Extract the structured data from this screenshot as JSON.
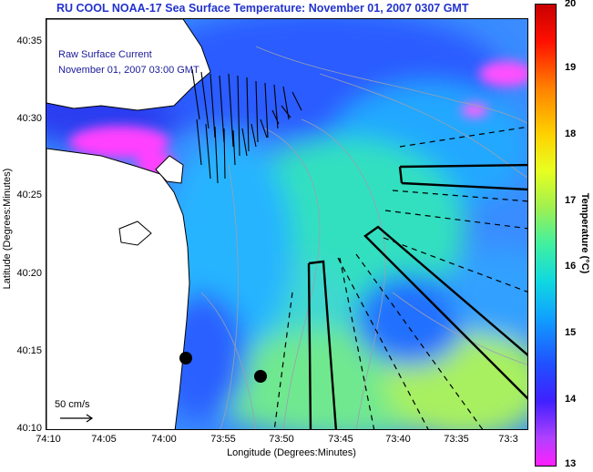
{
  "title": "RU COOL  NOAA-17  Sea Surface Temperature:  November 01, 2007 0307 GMT",
  "legend": {
    "current_label": "Raw Surface Current",
    "current_time": "November 01, 2007 03:00 GMT"
  },
  "axes": {
    "ylabel": "Latitude (Degrees:Minutes)",
    "xlabel": "Longitude (Degrees:Minutes)",
    "yticks": [
      "40:35",
      "40:30",
      "40:25",
      "40:20",
      "40:15",
      "40:10"
    ],
    "xticks": [
      "74:10",
      "74:05",
      "74:00",
      "73:55",
      "73:50",
      "73:45",
      "73:40",
      "73:35",
      "73:3"
    ]
  },
  "colorbar": {
    "label": "Temperature (°C)",
    "ticks": [
      "20",
      "19",
      "18",
      "17",
      "16",
      "15",
      "14",
      "13"
    ],
    "min": 13,
    "max": 20
  },
  "scale": {
    "label": "50 cm/s"
  },
  "colors": {
    "title": "#2233cc",
    "land": "#ffffff",
    "water_base": "#3a8cff"
  }
}
